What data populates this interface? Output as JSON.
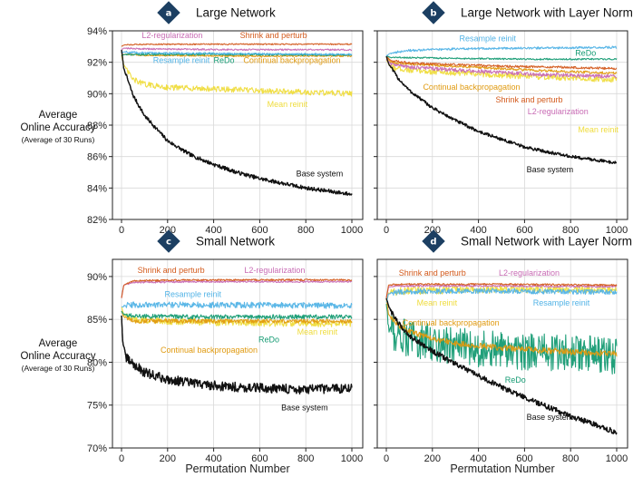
{
  "figure": {
    "xlabel": "Permutation Number",
    "ylabel_line1": "Average",
    "ylabel_line2": "Online Accuracy",
    "ylabel_line3": "(Average of 30 Runs)"
  },
  "colors": {
    "base": "#111111",
    "shrink": "#d35a1c",
    "l2": "#c86bb4",
    "resample": "#52b3e6",
    "redo": "#159b73",
    "cbp": "#e09a10",
    "mean": "#efdc3c",
    "grid": "#d9d9d9",
    "badge": "#1c3f62"
  },
  "chart_data": [
    {
      "type": "line",
      "badge": "a",
      "title": "Large Network",
      "xlim": [
        0,
        1000
      ],
      "ylim": [
        82,
        94
      ],
      "x_ticks": [
        "0",
        "200",
        "400",
        "600",
        "800",
        "1000"
      ],
      "y_ticks": [
        "82%",
        "84%",
        "86%",
        "88%",
        "90%",
        "92%",
        "94%"
      ],
      "y_tick_values": [
        82,
        84,
        86,
        88,
        90,
        92,
        94
      ],
      "series": [
        {
          "name": "Base system",
          "key": "base",
          "x": [
            0,
            10,
            50,
            100,
            200,
            300,
            400,
            500,
            600,
            700,
            800,
            900,
            1000
          ],
          "values": [
            92.8,
            91.6,
            89.9,
            88.6,
            87.0,
            86.1,
            85.5,
            85.0,
            84.6,
            84.3,
            84.0,
            83.8,
            83.6
          ],
          "noise": 0.12
        },
        {
          "name": "Mean reinit",
          "key": "mean",
          "x": [
            0,
            10,
            50,
            100,
            200,
            400,
            600,
            800,
            1000
          ],
          "values": [
            92.5,
            91.8,
            90.9,
            90.6,
            90.4,
            90.3,
            90.2,
            90.1,
            90.0
          ],
          "noise": 0.18
        },
        {
          "name": "Continual backpropagation",
          "key": "cbp",
          "x": [
            0,
            10,
            100,
            500,
            1000
          ],
          "values": [
            92.4,
            92.5,
            92.45,
            92.4,
            92.4
          ],
          "noise": 0.05
        },
        {
          "name": "ReDo",
          "key": "redo",
          "x": [
            0,
            10,
            100,
            500,
            1000
          ],
          "values": [
            92.4,
            92.5,
            92.5,
            92.5,
            92.45
          ],
          "noise": 0.06
        },
        {
          "name": "Resample reinit",
          "key": "resample",
          "x": [
            0,
            10,
            100,
            500,
            1000
          ],
          "values": [
            92.6,
            92.65,
            92.6,
            92.55,
            92.5
          ],
          "noise": 0.06
        },
        {
          "name": "L2-regularization",
          "key": "l2",
          "x": [
            0,
            10,
            100,
            500,
            1000
          ],
          "values": [
            92.8,
            92.9,
            92.85,
            92.8,
            92.8
          ],
          "noise": 0.05
        },
        {
          "name": "Shrink and perturb",
          "key": "shrink",
          "x": [
            0,
            10,
            100,
            500,
            1000
          ],
          "values": [
            93.0,
            93.1,
            93.15,
            93.15,
            93.15
          ],
          "noise": 0.04
        }
      ],
      "annotations": [
        {
          "text": "L2-regularization",
          "key": "l2",
          "x": 220,
          "y": 93.55
        },
        {
          "text": "Shrink and perturb",
          "key": "shrink",
          "x": 660,
          "y": 93.55
        },
        {
          "text": "Resample reinit",
          "key": "resample",
          "x": 260,
          "y": 91.95
        },
        {
          "text": "ReDo",
          "key": "redo",
          "x": 445,
          "y": 91.95
        },
        {
          "text": "Continual backpropagation",
          "key": "cbp",
          "x": 740,
          "y": 91.95
        },
        {
          "text": "Mean reinit",
          "key": "mean",
          "x": 720,
          "y": 89.15
        },
        {
          "text": "Base system",
          "key": "base",
          "x": 860,
          "y": 84.75
        }
      ]
    },
    {
      "type": "line",
      "badge": "b",
      "title": "Large Network with Layer Norm",
      "xlim": [
        0,
        1000
      ],
      "ylim": [
        82,
        94
      ],
      "x_ticks": [
        "0",
        "200",
        "400",
        "600",
        "800",
        "1000"
      ],
      "y_ticks": [],
      "y_tick_values": [
        82,
        84,
        86,
        88,
        90,
        92,
        94
      ],
      "series": [
        {
          "name": "Base system",
          "key": "base",
          "x": [
            0,
            10,
            50,
            100,
            200,
            300,
            400,
            500,
            600,
            700,
            800,
            900,
            1000
          ],
          "values": [
            92.4,
            91.9,
            91.0,
            90.2,
            89.1,
            88.3,
            87.6,
            87.1,
            86.6,
            86.3,
            86.0,
            85.8,
            85.6
          ],
          "noise": 0.1
        },
        {
          "name": "Mean reinit",
          "key": "mean",
          "x": [
            0,
            20,
            100,
            200,
            400,
            600,
            800,
            1000
          ],
          "values": [
            92.1,
            91.7,
            91.5,
            91.4,
            91.25,
            91.1,
            91.0,
            90.9
          ],
          "noise": 0.18
        },
        {
          "name": "L2-regularization",
          "key": "l2",
          "x": [
            0,
            20,
            100,
            300,
            500,
            700,
            1000
          ],
          "values": [
            92.2,
            91.9,
            91.7,
            91.5,
            91.35,
            91.2,
            91.1
          ],
          "noise": 0.12
        },
        {
          "name": "Continual backpropagation",
          "key": "cbp",
          "x": [
            0,
            20,
            100,
            300,
            500,
            700,
            1000
          ],
          "values": [
            92.3,
            92.0,
            91.9,
            91.75,
            91.6,
            91.45,
            91.3
          ],
          "noise": 0.08
        },
        {
          "name": "Shrink and perturb",
          "key": "shrink",
          "x": [
            0,
            20,
            100,
            300,
            500,
            700,
            1000
          ],
          "values": [
            92.4,
            92.1,
            91.95,
            91.85,
            91.75,
            91.7,
            91.6
          ],
          "noise": 0.07
        },
        {
          "name": "ReDo",
          "key": "redo",
          "x": [
            0,
            20,
            100,
            300,
            600,
            1000
          ],
          "values": [
            92.4,
            92.3,
            92.3,
            92.25,
            92.2,
            92.2
          ],
          "noise": 0.05
        },
        {
          "name": "Resample reinit",
          "key": "resample",
          "x": [
            0,
            20,
            100,
            300,
            600,
            1000
          ],
          "values": [
            92.4,
            92.6,
            92.75,
            92.85,
            92.9,
            92.95
          ],
          "noise": 0.07
        }
      ],
      "annotations": [
        {
          "text": "Resample reinit",
          "key": "resample",
          "x": 440,
          "y": 93.35
        },
        {
          "text": "ReDo",
          "key": "redo",
          "x": 865,
          "y": 92.4
        },
        {
          "text": "Continual backpropagation",
          "key": "cbp",
          "x": 370,
          "y": 90.25
        },
        {
          "text": "Shrink and perturb",
          "key": "shrink",
          "x": 620,
          "y": 89.45
        },
        {
          "text": "L2-regularization",
          "key": "l2",
          "x": 745,
          "y": 88.7
        },
        {
          "text": "Mean reinit",
          "key": "mean",
          "x": 920,
          "y": 87.55
        },
        {
          "text": "Base system",
          "key": "base",
          "x": 710,
          "y": 85.0
        }
      ]
    },
    {
      "type": "line",
      "badge": "c",
      "title": "Small Network",
      "xlim": [
        0,
        1000
      ],
      "ylim": [
        70,
        92
      ],
      "x_ticks": [
        "0",
        "200",
        "400",
        "600",
        "800",
        "1000"
      ],
      "y_ticks": [
        "70%",
        "75%",
        "80%",
        "85%",
        "90%"
      ],
      "y_tick_values": [
        70,
        75,
        80,
        85,
        90
      ],
      "series": [
        {
          "name": "Base system",
          "key": "base",
          "x": [
            0,
            5,
            20,
            60,
            100,
            200,
            300,
            400,
            500,
            600,
            700,
            800,
            900,
            1000
          ],
          "values": [
            85.5,
            82.5,
            80.5,
            79.6,
            78.8,
            78.0,
            77.6,
            77.3,
            77.1,
            77.0,
            76.9,
            76.8,
            76.9,
            77.0
          ],
          "noise": 0.55
        },
        {
          "name": "Mean reinit",
          "key": "mean",
          "x": [
            0,
            10,
            50,
            200,
            500,
            800,
            1000
          ],
          "values": [
            86.5,
            85.5,
            85.0,
            84.8,
            84.6,
            84.5,
            84.5
          ],
          "noise": 0.4
        },
        {
          "name": "Continual backpropagation",
          "key": "cbp",
          "x": [
            0,
            10,
            50,
            300,
            1000
          ],
          "values": [
            86.0,
            85.3,
            84.8,
            84.8,
            84.8
          ],
          "noise": 0.25
        },
        {
          "name": "ReDo",
          "key": "redo",
          "x": [
            0,
            10,
            50,
            300,
            1000
          ],
          "values": [
            86.0,
            85.6,
            85.4,
            85.3,
            85.3
          ],
          "noise": 0.25
        },
        {
          "name": "Resample reinit",
          "key": "resample",
          "x": [
            0,
            10,
            50,
            300,
            1000
          ],
          "values": [
            86.5,
            86.6,
            86.7,
            86.7,
            86.6
          ],
          "noise": 0.35
        },
        {
          "name": "L2-regularization",
          "key": "l2",
          "x": [
            0,
            10,
            50,
            300,
            1000
          ],
          "values": [
            87.5,
            89.0,
            89.3,
            89.4,
            89.4
          ],
          "noise": 0.1
        },
        {
          "name": "Shrink and perturb",
          "key": "shrink",
          "x": [
            0,
            10,
            50,
            300,
            1000
          ],
          "values": [
            87.5,
            89.0,
            89.5,
            89.6,
            89.6
          ],
          "noise": 0.1
        }
      ],
      "annotations": [
        {
          "text": "Shrink and perturb",
          "key": "shrink",
          "x": 215,
          "y": 90.4
        },
        {
          "text": "L2-regularization",
          "key": "l2",
          "x": 665,
          "y": 90.4
        },
        {
          "text": "Resample reinit",
          "key": "resample",
          "x": 310,
          "y": 87.6
        },
        {
          "text": "ReDo",
          "key": "redo",
          "x": 640,
          "y": 82.3
        },
        {
          "text": "Mean reinit",
          "key": "mean",
          "x": 850,
          "y": 83.2
        },
        {
          "text": "Continual backpropagation",
          "key": "cbp",
          "x": 380,
          "y": 81.1
        },
        {
          "text": "Base system",
          "key": "base",
          "x": 795,
          "y": 74.4
        }
      ]
    },
    {
      "type": "line",
      "badge": "d",
      "title": "Small Network with Layer Norm",
      "xlim": [
        0,
        1000
      ],
      "ylim": [
        70,
        92
      ],
      "x_ticks": [
        "0",
        "200",
        "400",
        "600",
        "800",
        "1000"
      ],
      "y_ticks": [],
      "y_tick_values": [
        70,
        75,
        80,
        85,
        90
      ],
      "series": [
        {
          "name": "Base system",
          "key": "base",
          "x": [
            0,
            10,
            50,
            100,
            200,
            300,
            400,
            500,
            600,
            700,
            800,
            900,
            1000
          ],
          "values": [
            87.5,
            86.5,
            84.6,
            83.1,
            81.3,
            79.8,
            78.4,
            77.1,
            75.9,
            74.8,
            73.7,
            72.8,
            71.8
          ],
          "noise": 0.3
        },
        {
          "name": "ReDo",
          "key": "redo",
          "x": [
            0,
            10,
            50,
            100,
            200,
            300,
            400,
            600,
            800,
            1000
          ],
          "values": [
            87.0,
            84.0,
            83.2,
            82.8,
            82.3,
            81.9,
            81.6,
            81.2,
            81.0,
            80.8
          ],
          "noise": 2.2
        },
        {
          "name": "Continual backpropagation",
          "key": "cbp",
          "x": [
            0,
            10,
            50,
            100,
            200,
            300,
            400,
            600,
            800,
            1000
          ],
          "values": [
            87.5,
            85.5,
            84.4,
            83.6,
            82.8,
            82.2,
            81.9,
            81.5,
            81.2,
            81.0
          ],
          "noise": 0.35
        },
        {
          "name": "Mean reinit",
          "key": "mean",
          "x": [
            0,
            10,
            50,
            200,
            500,
            1000
          ],
          "values": [
            87.0,
            88.0,
            88.3,
            88.4,
            88.5,
            88.5
          ],
          "noise": 0.45
        },
        {
          "name": "Resample reinit",
          "key": "resample",
          "x": [
            0,
            10,
            50,
            200,
            500,
            1000
          ],
          "values": [
            87.0,
            88.0,
            88.2,
            88.3,
            88.3,
            88.2
          ],
          "noise": 0.3
        },
        {
          "name": "L2-regularization",
          "key": "l2",
          "x": [
            0,
            10,
            50,
            200,
            500,
            1000
          ],
          "values": [
            87.5,
            88.8,
            88.9,
            88.9,
            88.9,
            88.8
          ],
          "noise": 0.1
        },
        {
          "name": "Shrink and perturb",
          "key": "shrink",
          "x": [
            0,
            10,
            50,
            200,
            500,
            1000
          ],
          "values": [
            87.5,
            89.0,
            89.1,
            89.1,
            89.1,
            89.0
          ],
          "noise": 0.1
        }
      ],
      "annotations": [
        {
          "text": "Shrink and perturb",
          "key": "shrink",
          "x": 200,
          "y": 90.1
        },
        {
          "text": "L2-regularization",
          "key": "l2",
          "x": 620,
          "y": 90.1
        },
        {
          "text": "Mean reinit",
          "key": "mean",
          "x": 220,
          "y": 86.6
        },
        {
          "text": "Resample reinit",
          "key": "resample",
          "x": 760,
          "y": 86.6
        },
        {
          "text": "Continual backpropagation",
          "key": "cbp",
          "x": 280,
          "y": 84.3
        },
        {
          "text": "ReDo",
          "key": "redo",
          "x": 560,
          "y": 77.6
        },
        {
          "text": "Base system",
          "key": "base",
          "x": 710,
          "y": 73.3
        }
      ]
    }
  ]
}
